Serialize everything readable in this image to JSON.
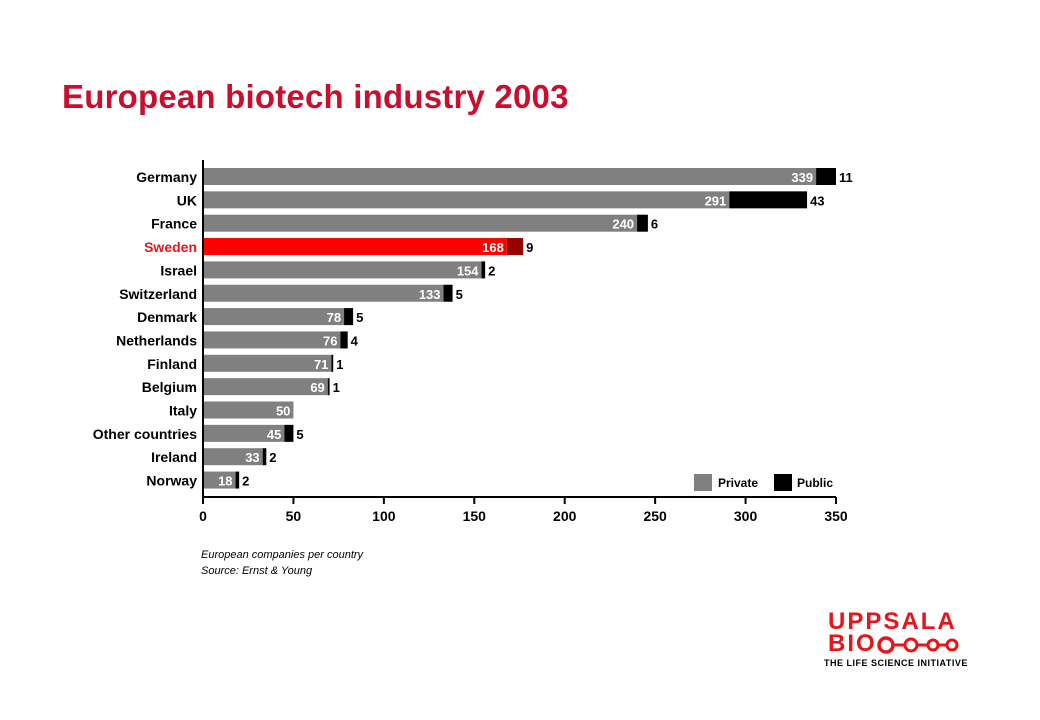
{
  "title": "European biotech industry 2003",
  "notes": {
    "line1": "European companies per country",
    "line2": "Source: Ernst & Young"
  },
  "logo": {
    "line1": "UPPSALA",
    "line2": "BIO",
    "tagline": "THE LIFE SCIENCE INITIATIVE"
  },
  "colors": {
    "private": "#808080",
    "public": "#000000",
    "highlight_private": "#ff0000",
    "highlight_public": "#990000",
    "title": "#c8102e"
  },
  "chart_data": {
    "type": "bar",
    "orientation": "horizontal",
    "stacked": true,
    "categories": [
      "Germany",
      "UK",
      "France",
      "Sweden",
      "Israel",
      "Switzerland",
      "Denmark",
      "Netherlands",
      "Finland",
      "Belgium",
      "Italy",
      "Other countries",
      "Ireland",
      "Norway"
    ],
    "highlight": "Sweden",
    "series": [
      {
        "name": "Private",
        "values": [
          339,
          291,
          240,
          168,
          154,
          133,
          78,
          76,
          71,
          69,
          50,
          45,
          33,
          18
        ]
      },
      {
        "name": "Public",
        "values": [
          11,
          43,
          6,
          9,
          2,
          5,
          5,
          4,
          1,
          1,
          0,
          5,
          2,
          2
        ]
      }
    ],
    "xlim": [
      0,
      350
    ],
    "xticks": [
      0,
      50,
      100,
      150,
      200,
      250,
      300,
      350
    ],
    "legend_position": "bottom-right",
    "grid": false
  }
}
